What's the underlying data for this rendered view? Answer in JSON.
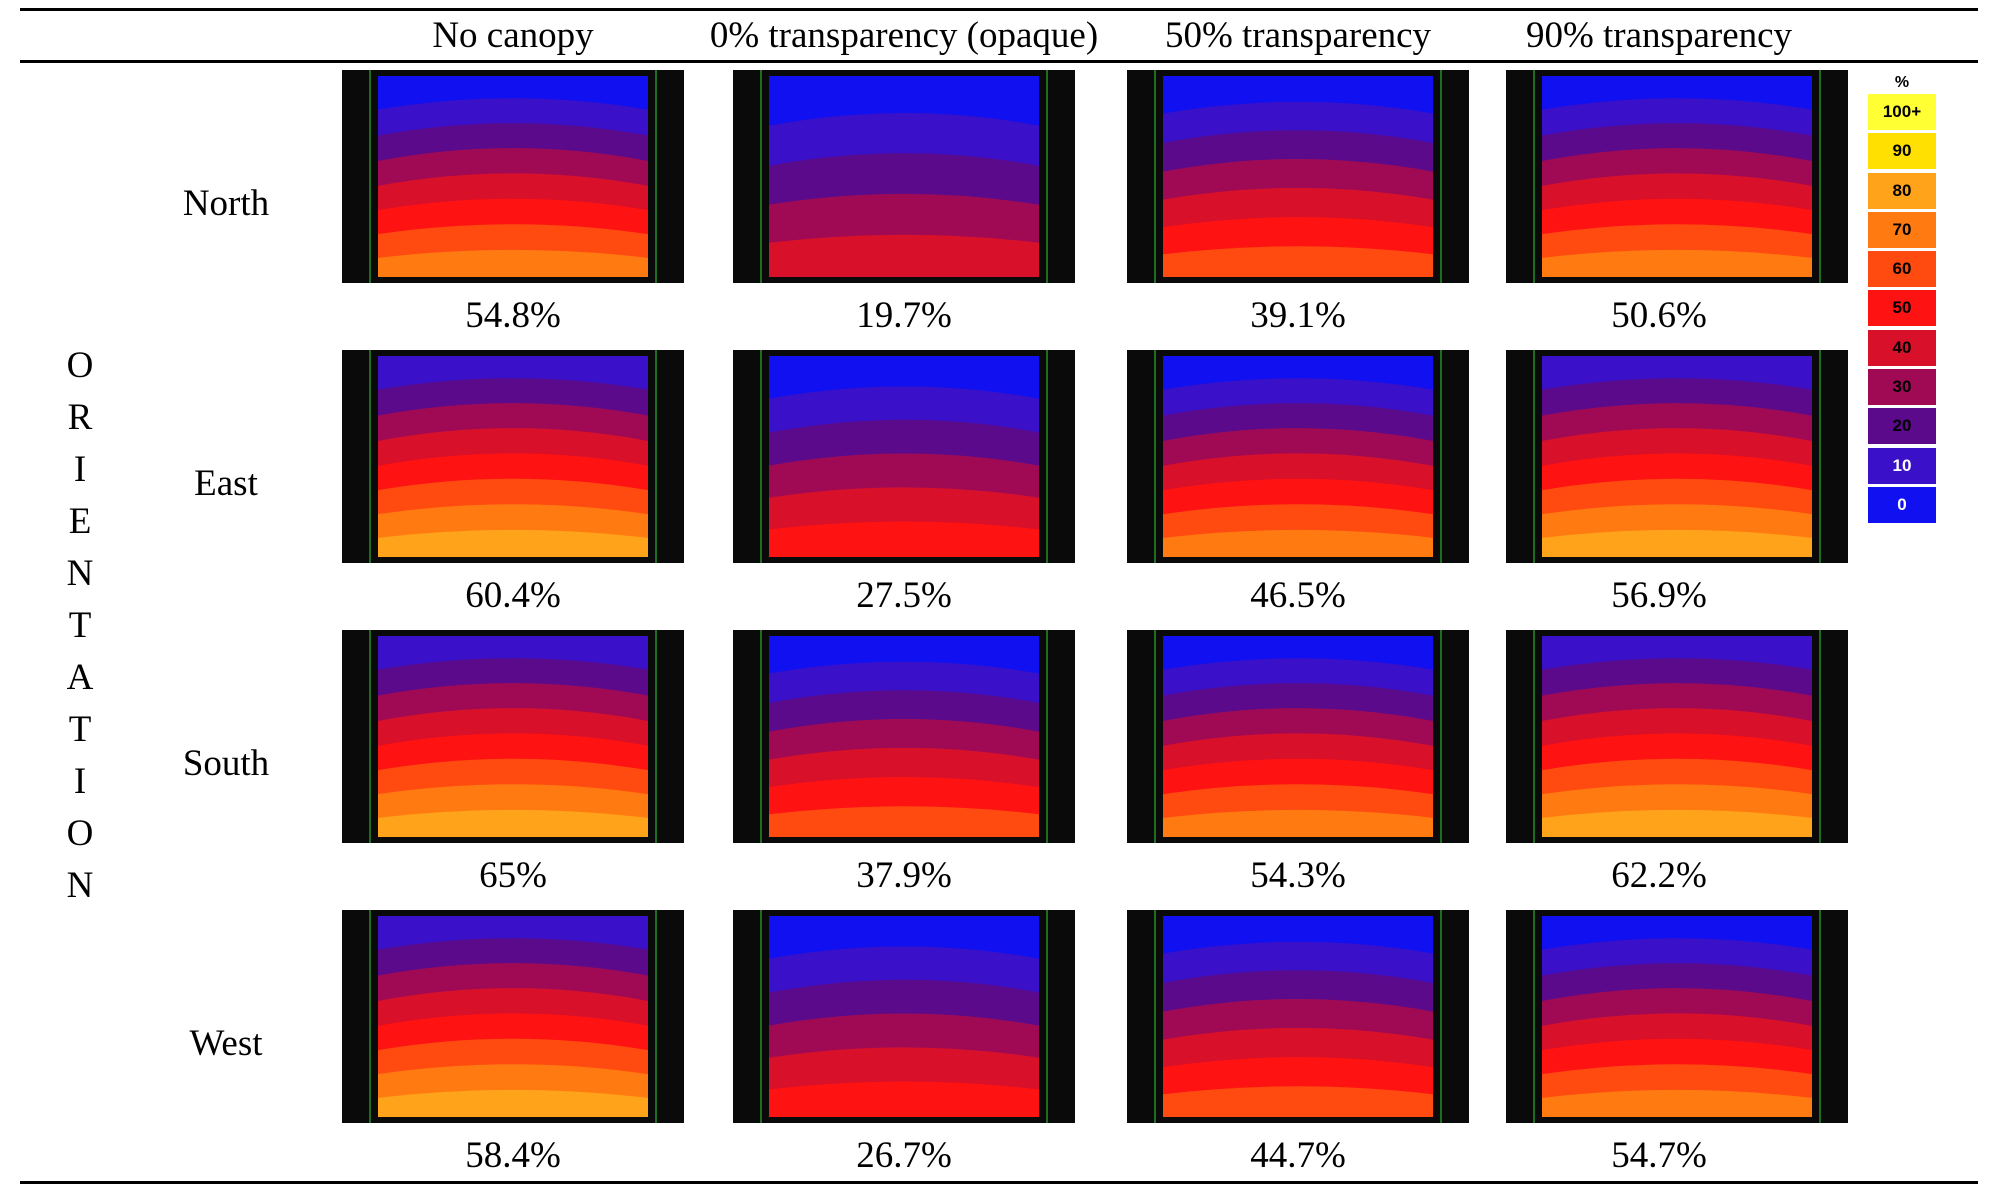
{
  "columns": [
    "No canopy",
    "0% transparency (opaque)",
    "50% transparency",
    "90% transparency"
  ],
  "row_axis_label": [
    "O",
    "R",
    "I",
    "E",
    "N",
    "T",
    "A",
    "T",
    "I",
    "O",
    "N"
  ],
  "rows": [
    {
      "label": "North",
      "values": [
        "54.8%",
        "19.7%",
        "39.1%",
        "50.6%"
      ]
    },
    {
      "label": "East",
      "values": [
        "60.4%",
        "27.5%",
        "46.5%",
        "56.9%"
      ]
    },
    {
      "label": "South",
      "values": [
        "65%",
        "37.9%",
        "54.3%",
        "62.2%"
      ]
    },
    {
      "label": "West",
      "values": [
        "58.4%",
        "26.7%",
        "44.7%",
        "54.7%"
      ]
    }
  ],
  "legend": {
    "title": "%",
    "items": [
      {
        "label": "100+",
        "color": "#ffff33"
      },
      {
        "label": "90",
        "color": "#ffe000"
      },
      {
        "label": "80",
        "color": "#ffa31a"
      },
      {
        "label": "70",
        "color": "#ff7a10"
      },
      {
        "label": "60",
        "color": "#ff4a10"
      },
      {
        "label": "50",
        "color": "#ff1212"
      },
      {
        "label": "40",
        "color": "#d8102a"
      },
      {
        "label": "30",
        "color": "#a00a55"
      },
      {
        "label": "20",
        "color": "#5a0a8a"
      },
      {
        "label": "10",
        "color": "#3a10c8"
      },
      {
        "label": "0",
        "color": "#1010f0"
      }
    ]
  }
}
